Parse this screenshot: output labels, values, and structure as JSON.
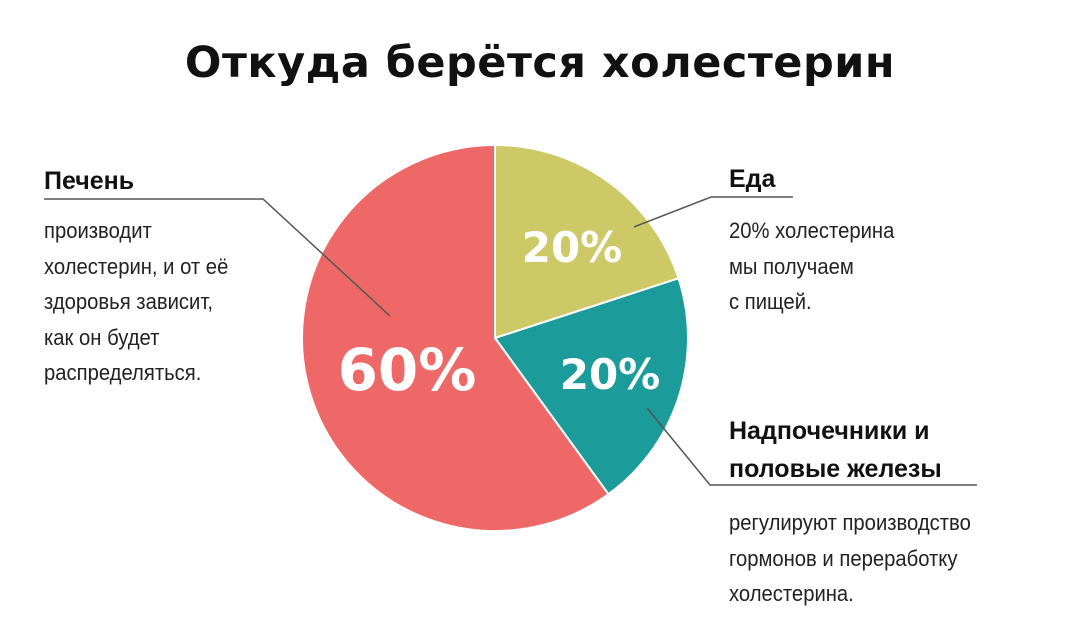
{
  "title": "Откуда берётся холестерин",
  "chart_data": {
    "type": "pie",
    "title": "Откуда берётся холестерин",
    "categories": [
      "Еда",
      "Надпочечники и половые железы",
      "Печень"
    ],
    "values": [
      20,
      20,
      60
    ],
    "unit": "%",
    "colors": [
      "#cdc967",
      "#1b9b99",
      "#ef6868"
    ],
    "labels": [
      "20%",
      "20%",
      "60%"
    ],
    "start_angle_deg": 0,
    "direction": "clockwise",
    "legend": "callouts"
  },
  "callouts": {
    "liver": {
      "heading": "Печень",
      "lines": [
        "производит",
        "холестерин, и от её",
        "здоровья зависит,",
        "как он будет",
        "распределяться."
      ]
    },
    "food": {
      "heading": "Еда",
      "lines": [
        "20% холестерина",
        "мы получаем",
        "с пищей."
      ]
    },
    "glands": {
      "heading_lines": [
        "Надпочечники и",
        "половые железы"
      ],
      "lines": [
        "регулируют производство",
        "гормонов и переработку",
        "холестерина."
      ]
    }
  },
  "slice_labels": {
    "food": "20%",
    "glands": "20%",
    "liver": "60%"
  }
}
